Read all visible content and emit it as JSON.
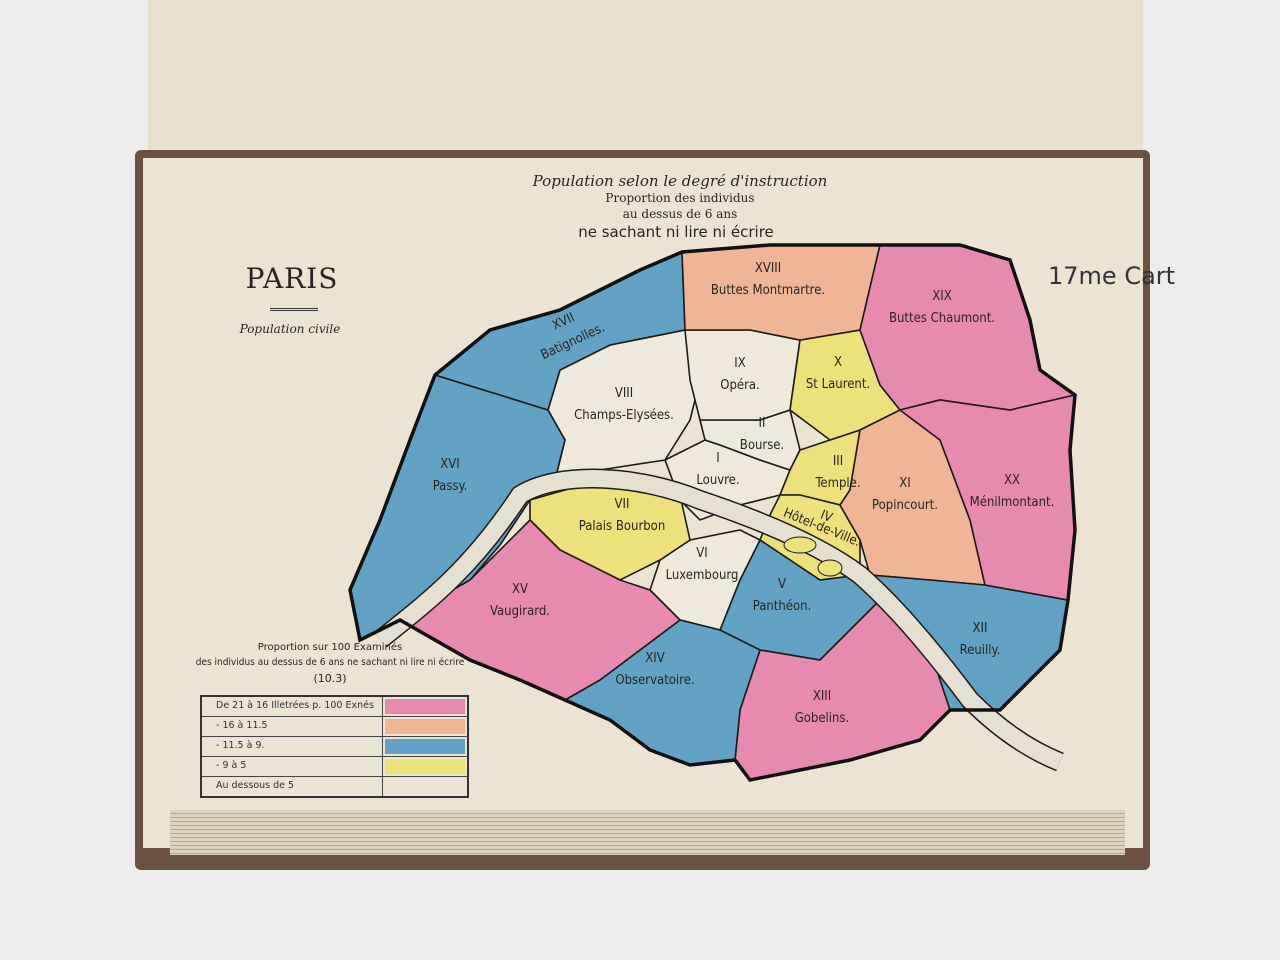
{
  "header": {
    "title": "Population selon le degré d'instruction",
    "subtitle1": "Proportion des individus",
    "subtitle2": "au dessus de 6 ans",
    "subtitle3": "ne sachant ni lire ni écrire",
    "city": "PARIS",
    "population": "Population civile",
    "card_number": "17me Cart"
  },
  "colors": {
    "pink": "#e78ab0",
    "salmon": "#f0b497",
    "blue": "#62a2c4",
    "yellow": "#ece17a",
    "white": "#efe9dd"
  },
  "arrondissements": [
    {
      "num": "I",
      "name": "Louvre.",
      "color": "white"
    },
    {
      "num": "II",
      "name": "Bourse.",
      "color": "white"
    },
    {
      "num": "III",
      "name": "Temple.",
      "color": "yellow"
    },
    {
      "num": "IV",
      "name": "Hôtel-de-Ville.",
      "color": "yellow"
    },
    {
      "num": "V",
      "name": "Panthéon.",
      "color": "blue"
    },
    {
      "num": "VI",
      "name": "Luxembourg",
      "color": "white"
    },
    {
      "num": "VII",
      "name": "Palais Bourbon",
      "color": "yellow"
    },
    {
      "num": "VIII",
      "name": "Champs-Elysées.",
      "color": "white"
    },
    {
      "num": "IX",
      "name": "Opéra.",
      "color": "white"
    },
    {
      "num": "X",
      "name": "St Laurent.",
      "color": "yellow"
    },
    {
      "num": "XI",
      "name": "Popincourt.",
      "color": "salmon"
    },
    {
      "num": "XII",
      "name": "Reuilly.",
      "color": "blue"
    },
    {
      "num": "XIII",
      "name": "Gobelins.",
      "color": "pink"
    },
    {
      "num": "XIV",
      "name": "Observatoire.",
      "color": "blue"
    },
    {
      "num": "XV",
      "name": "Vaugirard.",
      "color": "pink"
    },
    {
      "num": "XVI",
      "name": "Passy.",
      "color": "blue"
    },
    {
      "num": "XVII",
      "name": "Batignolles.",
      "color": "blue"
    },
    {
      "num": "XVIII",
      "name": "Buttes Montmartre.",
      "color": "salmon"
    },
    {
      "num": "XIX",
      "name": "Buttes Chaumont.",
      "color": "pink"
    },
    {
      "num": "XX",
      "name": "Ménilmontant.",
      "color": "pink"
    }
  ],
  "legend": {
    "caption1": "Proportion sur 100 Examinés",
    "caption2": "des individus au dessus de 6 ans ne sachant ni lire ni écrire",
    "average": "(10.3)",
    "rows": [
      {
        "label": "De 21 à 16  Illetrées p. 100 Exnés",
        "color": "pink"
      },
      {
        "label": "- 16 à 11.5",
        "color": "salmon"
      },
      {
        "label": "- 11.5 à 9.",
        "color": "blue"
      },
      {
        "label": "- 9 à 5",
        "color": "yellow"
      },
      {
        "label": "Au dessous de 5",
        "color": "white"
      }
    ]
  }
}
